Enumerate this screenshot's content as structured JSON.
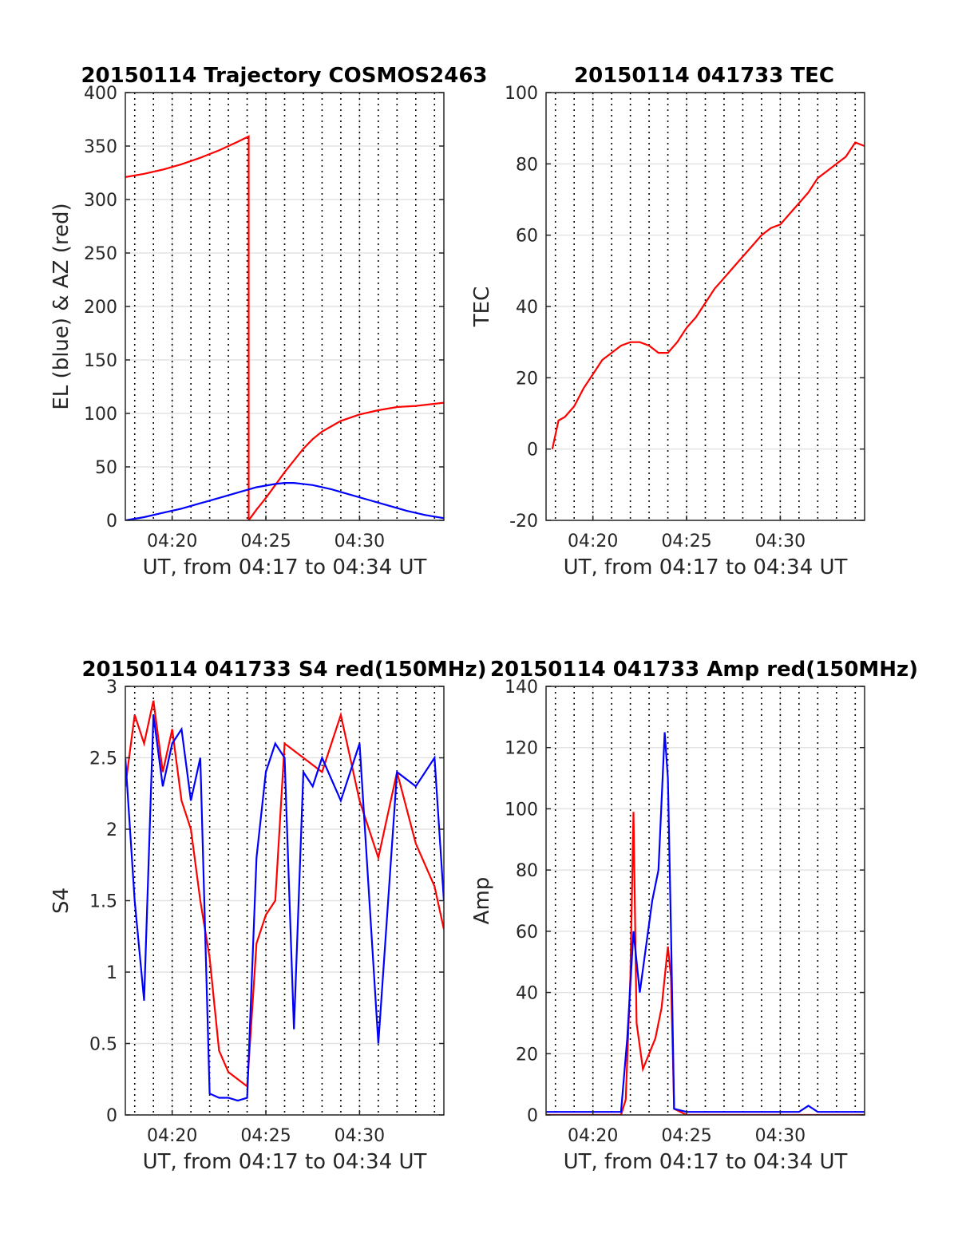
{
  "chart_data": [
    {
      "type": "line",
      "title": "20150114 Trajectory COSMOS2463",
      "xlabel": "UT, from 04:17 to 04:34 UT",
      "ylabel": "EL (blue) & AZ (red)",
      "xlim": [
        "04:17:30",
        "04:34:30"
      ],
      "ylim": [
        0,
        400
      ],
      "yticks": [
        "0",
        "50",
        "100",
        "150",
        "200",
        "250",
        "300",
        "350",
        "400"
      ],
      "xticks": [
        "04:20",
        "04:25",
        "04:30"
      ],
      "grid": true,
      "series": [
        {
          "color": "#ff0000",
          "x": [
            "04:17:30",
            "04:18:30",
            "04:19:30",
            "04:20:30",
            "04:21:30",
            "04:22:30",
            "04:23:30",
            "04:24:05",
            "04:24:05",
            "04:24:30",
            "04:25:00",
            "04:25:30",
            "04:26:00",
            "04:26:30",
            "04:27:00",
            "04:27:30",
            "04:28:00",
            "04:29:00",
            "04:30:00",
            "04:31:00",
            "04:32:00",
            "04:33:00",
            "04:34:30"
          ],
          "y": [
            321,
            324,
            328,
            333,
            339,
            346,
            354,
            359,
            0,
            10,
            21,
            33,
            45,
            56,
            67,
            76,
            83,
            93,
            99,
            103,
            106,
            107,
            110
          ]
        },
        {
          "color": "#0000ff",
          "x": [
            "04:17:30",
            "04:18:30",
            "04:19:30",
            "04:20:30",
            "04:21:30",
            "04:22:30",
            "04:23:30",
            "04:24:30",
            "04:25:30",
            "04:26:00",
            "04:26:30",
            "04:27:30",
            "04:28:30",
            "04:29:30",
            "04:30:30",
            "04:31:30",
            "04:32:30",
            "04:33:30",
            "04:34:30"
          ],
          "y": [
            0,
            3,
            7,
            11,
            16,
            21,
            26,
            31,
            34,
            35,
            35,
            33,
            29,
            24,
            19,
            14,
            9,
            5,
            2
          ]
        }
      ]
    },
    {
      "type": "line",
      "title": "20150114 041733 TEC",
      "xlabel": "UT, from 04:17 to 04:34 UT",
      "ylabel": "TEC",
      "xlim": [
        "04:17:30",
        "04:34:30"
      ],
      "ylim": [
        -20,
        100
      ],
      "yticks": [
        "-20",
        "0",
        "20",
        "40",
        "60",
        "80",
        "100"
      ],
      "xticks": [
        "04:20",
        "04:25",
        "04:30"
      ],
      "grid": true,
      "series": [
        {
          "color": "#ff0000",
          "x": [
            "04:17:50",
            "04:18:10",
            "04:18:30",
            "04:19:00",
            "04:19:30",
            "04:20:00",
            "04:20:30",
            "04:21:00",
            "04:21:30",
            "04:22:00",
            "04:22:30",
            "04:23:00",
            "04:23:30",
            "04:24:00",
            "04:24:30",
            "04:25:00",
            "04:25:30",
            "04:26:00",
            "04:26:30",
            "04:27:00",
            "04:27:30",
            "04:28:00",
            "04:28:30",
            "04:29:00",
            "04:29:30",
            "04:30:00",
            "04:30:30",
            "04:31:00",
            "04:31:30",
            "04:32:00",
            "04:32:30",
            "04:33:00",
            "04:33:30",
            "04:34:00",
            "04:34:30"
          ],
          "y": [
            0,
            8,
            9,
            12,
            17,
            21,
            25,
            27,
            29,
            30,
            30,
            29,
            27,
            27,
            30,
            34,
            37,
            41,
            45,
            48,
            51,
            54,
            57,
            60,
            62,
            63,
            66,
            69,
            72,
            76,
            78,
            80,
            82,
            86,
            85
          ]
        }
      ]
    },
    {
      "type": "line",
      "title": "20150114 041733 S4 red(150MHz)",
      "xlabel": "UT, from 04:17 to 04:34 UT",
      "ylabel": "S4",
      "xlim": [
        "04:17:30",
        "04:34:30"
      ],
      "ylim": [
        0,
        3
      ],
      "yticks": [
        "0",
        "0.5",
        "1",
        "1.5",
        "2",
        "2.5",
        "3"
      ],
      "xticks": [
        "04:20",
        "04:25",
        "04:30"
      ],
      "grid": true,
      "series": [
        {
          "color": "#ff0000",
          "x": [
            "04:17:30",
            "04:18:00",
            "04:18:30",
            "04:19:00",
            "04:19:30",
            "04:20:00",
            "04:20:30",
            "04:21:00",
            "04:21:30",
            "04:22:00",
            "04:22:30",
            "04:23:00",
            "04:23:30",
            "04:24:00",
            "04:24:30",
            "04:25:00",
            "04:25:30",
            "04:26:00",
            "04:27:00",
            "04:28:00",
            "04:29:00",
            "04:30:00",
            "04:31:00",
            "04:32:00",
            "04:33:00",
            "04:34:00",
            "04:34:30"
          ],
          "y": [
            2.3,
            2.8,
            2.6,
            2.9,
            2.4,
            2.7,
            2.2,
            2.0,
            1.5,
            1.1,
            0.45,
            0.3,
            0.25,
            0.2,
            1.2,
            1.4,
            1.5,
            2.6,
            2.5,
            2.4,
            2.8,
            2.2,
            1.8,
            2.4,
            1.9,
            1.6,
            1.3
          ]
        },
        {
          "color": "#0000ff",
          "x": [
            "04:17:30",
            "04:18:00",
            "04:18:30",
            "04:19:00",
            "04:19:30",
            "04:20:00",
            "04:20:30",
            "04:21:00",
            "04:21:30",
            "04:22:00",
            "04:22:30",
            "04:23:00",
            "04:23:30",
            "04:24:00",
            "04:24:30",
            "04:25:00",
            "04:25:30",
            "04:26:00",
            "04:26:30",
            "04:27:00",
            "04:27:30",
            "04:28:00",
            "04:29:00",
            "04:30:00",
            "04:31:00",
            "04:32:00",
            "04:33:00",
            "04:34:00",
            "04:34:30"
          ],
          "y": [
            2.5,
            1.5,
            0.8,
            2.8,
            2.3,
            2.6,
            2.7,
            2.2,
            2.5,
            0.15,
            0.12,
            0.12,
            0.1,
            0.12,
            1.8,
            2.4,
            2.6,
            2.5,
            0.6,
            2.4,
            2.3,
            2.5,
            2.2,
            2.6,
            0.5,
            2.4,
            2.3,
            2.5,
            1.5
          ]
        }
      ]
    },
    {
      "type": "line",
      "title": "20150114 041733 Amp red(150MHz)",
      "xlabel": "UT, from 04:17 to 04:34 UT",
      "ylabel": "Amp",
      "xlim": [
        "04:17:30",
        "04:34:30"
      ],
      "ylim": [
        0,
        140
      ],
      "yticks": [
        "0",
        "20",
        "40",
        "60",
        "80",
        "100",
        "120",
        "140"
      ],
      "xticks": [
        "04:20",
        "04:25",
        "04:30"
      ],
      "grid": true,
      "series": [
        {
          "color": "#ff0000",
          "x": [
            "04:17:30",
            "04:21:30",
            "04:21:45",
            "04:22:00",
            "04:22:10",
            "04:22:20",
            "04:22:40",
            "04:23:00",
            "04:23:20",
            "04:23:40",
            "04:24:00",
            "04:24:10",
            "04:24:20",
            "04:25:00",
            "04:34:30"
          ],
          "y": [
            0,
            0,
            5,
            45,
            99,
            30,
            15,
            20,
            25,
            35,
            55,
            45,
            2,
            0,
            0
          ]
        },
        {
          "color": "#0000ff",
          "x": [
            "04:17:30",
            "04:21:30",
            "04:21:50",
            "04:22:10",
            "04:22:30",
            "04:22:50",
            "04:23:10",
            "04:23:30",
            "04:23:50",
            "04:24:00",
            "04:24:10",
            "04:24:20",
            "04:25:00",
            "04:28:00",
            "04:31:00",
            "04:31:30",
            "04:32:00",
            "04:34:30"
          ],
          "y": [
            1,
            1,
            25,
            60,
            40,
            55,
            70,
            80,
            125,
            110,
            60,
            2,
            1,
            1,
            1,
            3,
            1,
            1
          ]
        }
      ]
    }
  ]
}
